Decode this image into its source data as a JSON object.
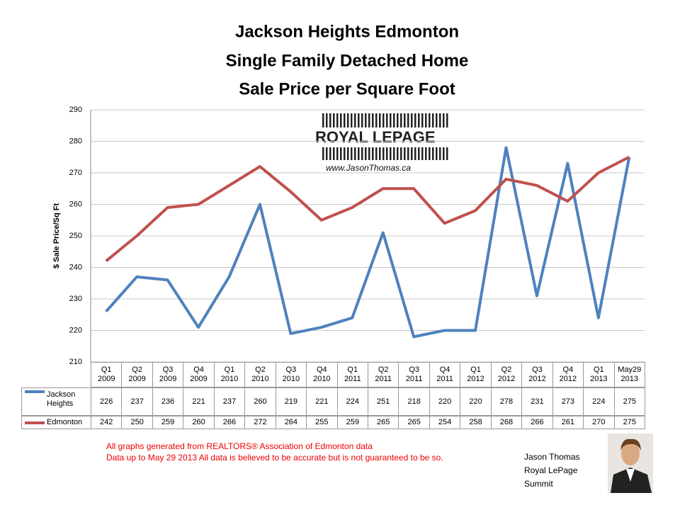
{
  "chart_data": {
    "type": "line",
    "title": "Jackson Heights Edmonton",
    "subtitle": [
      "Single Family Detached Home",
      "Sale Price per Square Foot"
    ],
    "y_label": "$ Sale Price/Sq Ft",
    "categories": [
      "Q1\n2009",
      "Q2\n2009",
      "Q3\n2009",
      "Q4\n2009",
      "Q1\n2010",
      "Q2\n2010",
      "Q3\n2010",
      "Q4\n2010",
      "Q1\n2011",
      "Q2\n2011",
      "Q3\n2011",
      "Q4\n2011",
      "Q1\n2012",
      "Q2\n2012",
      "Q3\n2012",
      "Q4\n2012",
      "Q1\n2013",
      "May29\n2013"
    ],
    "series": [
      {
        "name": "Jackson Heights",
        "color": "#4f81bd",
        "values": [
          226,
          237,
          236,
          221,
          237,
          260,
          219,
          221,
          224,
          251,
          218,
          220,
          220,
          278,
          231,
          273,
          224,
          275
        ]
      },
      {
        "name": "Edmonton",
        "color": "#c0504d",
        "values": [
          242,
          250,
          259,
          260,
          266,
          272,
          264,
          255,
          259,
          265,
          265,
          254,
          258,
          268,
          266,
          261,
          270,
          275
        ]
      }
    ],
    "ylim": [
      210,
      290
    ],
    "yticks": [
      210,
      220,
      230,
      240,
      250,
      260,
      270,
      280,
      290
    ],
    "grid": true,
    "logo": {
      "brand": "ROYAL LEPAGE",
      "url": "www.JasonThomas.ca"
    },
    "footnotes": [
      "All graphs generated from REALTORS® Association of Edmonton data",
      "Data up to  May 29 2013  All data is believed to be accurate but is not guaranteed to be so."
    ],
    "author": [
      "Jason Thomas",
      "Royal LePage",
      "Summit"
    ]
  }
}
